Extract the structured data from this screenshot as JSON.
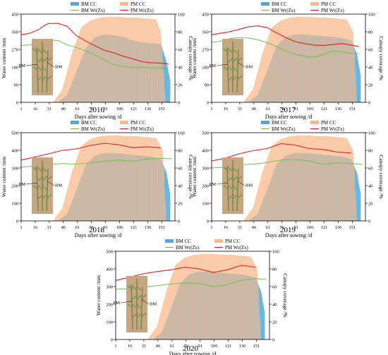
{
  "figure": {
    "years": [
      "2016",
      "2017",
      "2018",
      "2019",
      "2020"
    ]
  },
  "legend": {
    "bm_cc": "BM CC",
    "pm_cc": "PM CC",
    "bm_wr": "BM Wr(Zx)",
    "pm_wr": "PM Wr(Zx)"
  },
  "axes": {
    "xlabel": "Days after sowing /d",
    "ylabel_left": "Water content /mm",
    "ylabel_right": "Canopy coverage /%"
  },
  "photo_labels": {
    "pm": "PM",
    "bm": "BM"
  },
  "colors": {
    "bm_cc": "#4FA8DE",
    "pm_cc": "#F7B98C",
    "bm_wr": "#6CC44A",
    "pm_wr": "#E0201F",
    "bar_fill": "#B9B8AE",
    "photo_bg": "#C6A583",
    "plant": "#6E8A3E"
  },
  "chart_data": [
    {
      "type": "area",
      "title": "2016",
      "x_ticks": [
        1,
        16,
        31,
        46,
        61,
        76,
        91,
        106,
        121,
        136,
        151
      ],
      "y_left_ticks": [
        0,
        90,
        180,
        270,
        360,
        450
      ],
      "y_left_lim": [
        0,
        450
      ],
      "y_right_ticks": [
        0,
        20,
        40,
        60,
        80,
        100
      ],
      "y_right_lim": [
        0,
        100
      ],
      "x_lim": [
        1,
        165
      ],
      "series": [
        {
          "name": "BM CC",
          "axis": "right",
          "x": [
            1,
            40,
            50,
            60,
            70,
            80,
            90,
            100,
            110,
            120,
            130,
            140,
            150,
            155,
            160
          ],
          "y": [
            0,
            0,
            8,
            35,
            62,
            74,
            77,
            76,
            74,
            70,
            68,
            67,
            66,
            50,
            25
          ]
        },
        {
          "name": "PM CC",
          "axis": "right",
          "x": [
            1,
            35,
            45,
            55,
            65,
            75,
            85,
            95,
            105,
            115,
            125,
            135,
            145,
            150,
            155
          ],
          "y": [
            0,
            0,
            15,
            55,
            85,
            93,
            96,
            97,
            97,
            96,
            96,
            95,
            94,
            80,
            0
          ]
        },
        {
          "name": "BM Wr(Zx)",
          "axis": "left",
          "x": [
            1,
            10,
            20,
            30,
            40,
            50,
            60,
            70,
            80,
            90,
            100,
            110,
            120,
            130,
            140,
            150,
            158
          ],
          "y": [
            290,
            293,
            300,
            318,
            316,
            293,
            280,
            262,
            240,
            215,
            193,
            183,
            178,
            178,
            176,
            176,
            172
          ]
        },
        {
          "name": "PM Wr(Zx)",
          "axis": "left",
          "x": [
            1,
            10,
            20,
            25,
            30,
            40,
            50,
            60,
            70,
            80,
            90,
            100,
            110,
            120,
            130,
            140,
            150,
            158
          ],
          "y": [
            345,
            352,
            372,
            390,
            402,
            403,
            388,
            340,
            312,
            288,
            265,
            252,
            235,
            222,
            207,
            202,
            200,
            196
          ]
        }
      ]
    },
    {
      "type": "area",
      "title": "2017",
      "x_ticks": [
        1,
        16,
        31,
        46,
        61,
        76,
        91,
        106,
        121,
        136,
        151
      ],
      "y_left_ticks": [
        0,
        90,
        180,
        270,
        360,
        450
      ],
      "y_left_lim": [
        0,
        450
      ],
      "y_right_ticks": [
        0,
        20,
        40,
        60,
        80,
        100
      ],
      "y_right_lim": [
        0,
        100
      ],
      "x_lim": [
        1,
        165
      ],
      "series": [
        {
          "name": "BM CC",
          "axis": "right",
          "x": [
            1,
            40,
            50,
            60,
            70,
            80,
            90,
            100,
            110,
            120,
            130,
            140,
            150,
            156,
            160
          ],
          "y": [
            0,
            0,
            8,
            35,
            64,
            74,
            77,
            77,
            76,
            75,
            74,
            73,
            70,
            55,
            30
          ]
        },
        {
          "name": "PM CC",
          "axis": "right",
          "x": [
            1,
            35,
            45,
            55,
            65,
            75,
            85,
            95,
            105,
            115,
            125,
            135,
            145,
            152,
            156
          ],
          "y": [
            0,
            0,
            15,
            55,
            85,
            93,
            96,
            97,
            97,
            96,
            96,
            95,
            94,
            80,
            0
          ]
        },
        {
          "name": "BM Wr(Zx)",
          "axis": "left",
          "x": [
            1,
            10,
            20,
            30,
            40,
            50,
            60,
            70,
            80,
            90,
            100,
            110,
            120,
            130,
            140,
            150,
            158
          ],
          "y": [
            305,
            312,
            325,
            330,
            328,
            320,
            305,
            285,
            262,
            245,
            235,
            230,
            243,
            262,
            258,
            250,
            248
          ]
        },
        {
          "name": "PM Wr(Zx)",
          "axis": "left",
          "x": [
            1,
            10,
            20,
            30,
            40,
            50,
            60,
            70,
            80,
            90,
            100,
            110,
            120,
            130,
            140,
            150,
            158
          ],
          "y": [
            345,
            352,
            360,
            372,
            385,
            390,
            382,
            355,
            330,
            310,
            300,
            292,
            290,
            295,
            300,
            292,
            285
          ]
        }
      ]
    },
    {
      "type": "area",
      "title": "2018",
      "x_ticks": [
        1,
        16,
        31,
        46,
        61,
        76,
        91,
        106,
        121,
        136,
        151
      ],
      "y_left_ticks": [
        0,
        100,
        200,
        300,
        400,
        500
      ],
      "y_left_lim": [
        0,
        500
      ],
      "y_right_ticks": [
        0,
        20,
        40,
        60,
        80,
        100
      ],
      "y_right_lim": [
        0,
        100
      ],
      "x_lim": [
        1,
        165
      ],
      "series": [
        {
          "name": "BM CC",
          "axis": "right",
          "x": [
            1,
            40,
            50,
            60,
            70,
            80,
            90,
            100,
            110,
            120,
            130,
            140,
            150,
            156,
            160
          ],
          "y": [
            0,
            0,
            8,
            35,
            64,
            74,
            77,
            77,
            76,
            75,
            74,
            73,
            70,
            55,
            30
          ]
        },
        {
          "name": "PM CC",
          "axis": "right",
          "x": [
            1,
            35,
            45,
            55,
            65,
            75,
            85,
            95,
            105,
            115,
            125,
            135,
            145,
            152,
            156
          ],
          "y": [
            0,
            0,
            15,
            55,
            85,
            93,
            96,
            97,
            97,
            96,
            96,
            95,
            94,
            80,
            0
          ]
        },
        {
          "name": "BM Wr(Zx)",
          "axis": "left",
          "x": [
            1,
            15,
            30,
            45,
            60,
            75,
            90,
            105,
            120,
            135,
            150,
            162
          ],
          "y": [
            305,
            312,
            320,
            325,
            322,
            330,
            338,
            345,
            338,
            350,
            355,
            352
          ]
        },
        {
          "name": "PM Wr(Zx)",
          "axis": "left",
          "x": [
            1,
            15,
            30,
            45,
            60,
            75,
            90,
            105,
            120,
            135,
            150
          ],
          "y": [
            345,
            362,
            380,
            400,
            408,
            428,
            440,
            432,
            415,
            420,
            415
          ]
        }
      ]
    },
    {
      "type": "area",
      "title": "2019",
      "x_ticks": [
        1,
        16,
        31,
        46,
        61,
        76,
        91,
        106,
        121,
        136,
        151
      ],
      "y_left_ticks": [
        0,
        100,
        200,
        300,
        400,
        500
      ],
      "y_left_lim": [
        0,
        500
      ],
      "y_right_ticks": [
        0,
        20,
        40,
        60,
        80,
        100
      ],
      "y_right_lim": [
        0,
        100
      ],
      "x_lim": [
        1,
        165
      ],
      "series": [
        {
          "name": "BM CC",
          "axis": "right",
          "x": [
            1,
            40,
            50,
            60,
            70,
            80,
            90,
            100,
            110,
            120,
            130,
            140,
            150,
            156,
            160
          ],
          "y": [
            0,
            0,
            8,
            35,
            64,
            74,
            77,
            77,
            76,
            75,
            74,
            73,
            70,
            55,
            30
          ]
        },
        {
          "name": "PM CC",
          "axis": "right",
          "x": [
            1,
            35,
            45,
            55,
            65,
            75,
            85,
            95,
            105,
            115,
            125,
            135,
            145,
            152,
            156
          ],
          "y": [
            0,
            0,
            15,
            55,
            85,
            93,
            96,
            97,
            97,
            96,
            96,
            95,
            94,
            80,
            0
          ]
        },
        {
          "name": "BM Wr(Zx)",
          "axis": "left",
          "x": [
            1,
            15,
            30,
            45,
            60,
            75,
            90,
            105,
            120,
            135,
            150,
            162
          ],
          "y": [
            300,
            305,
            318,
            322,
            330,
            345,
            348,
            340,
            320,
            330,
            325,
            320
          ]
        },
        {
          "name": "PM Wr(Zx)",
          "axis": "left",
          "x": [
            1,
            15,
            30,
            45,
            60,
            75,
            90,
            105,
            120,
            135,
            150
          ],
          "y": [
            340,
            355,
            380,
            398,
            410,
            438,
            430,
            410,
            405,
            390,
            385
          ]
        }
      ]
    },
    {
      "type": "area",
      "title": "2020",
      "x_ticks": [
        1,
        16,
        31,
        46,
        61,
        76,
        91,
        106,
        121,
        136,
        151
      ],
      "y_left_ticks": [
        0,
        100,
        200,
        300,
        400,
        500
      ],
      "y_left_lim": [
        0,
        500
      ],
      "y_right_ticks": [
        0,
        20,
        40,
        60,
        80,
        100
      ],
      "y_right_lim": [
        0,
        100
      ],
      "x_lim": [
        1,
        165
      ],
      "series": [
        {
          "name": "BM CC",
          "axis": "right",
          "x": [
            1,
            40,
            50,
            60,
            70,
            80,
            90,
            100,
            110,
            120,
            130,
            140,
            150,
            156,
            160
          ],
          "y": [
            0,
            0,
            8,
            35,
            64,
            74,
            77,
            77,
            76,
            75,
            74,
            73,
            70,
            55,
            30
          ]
        },
        {
          "name": "PM CC",
          "axis": "right",
          "x": [
            1,
            35,
            45,
            55,
            65,
            75,
            85,
            95,
            105,
            115,
            125,
            135,
            145,
            152,
            156
          ],
          "y": [
            0,
            0,
            15,
            55,
            85,
            93,
            96,
            97,
            97,
            96,
            96,
            95,
            94,
            80,
            0
          ]
        },
        {
          "name": "BM Wr(Zx)",
          "axis": "left",
          "x": [
            1,
            15,
            30,
            45,
            60,
            75,
            90,
            105,
            120,
            135,
            150,
            162
          ],
          "y": [
            285,
            288,
            295,
            305,
            315,
            320,
            318,
            300,
            310,
            335,
            345,
            340
          ]
        },
        {
          "name": "PM Wr(Zx)",
          "axis": "left",
          "x": [
            1,
            15,
            30,
            45,
            60,
            75,
            90,
            105,
            120,
            135,
            150
          ],
          "y": [
            335,
            352,
            372,
            385,
            395,
            410,
            400,
            380,
            395,
            420,
            410
          ]
        }
      ]
    }
  ]
}
